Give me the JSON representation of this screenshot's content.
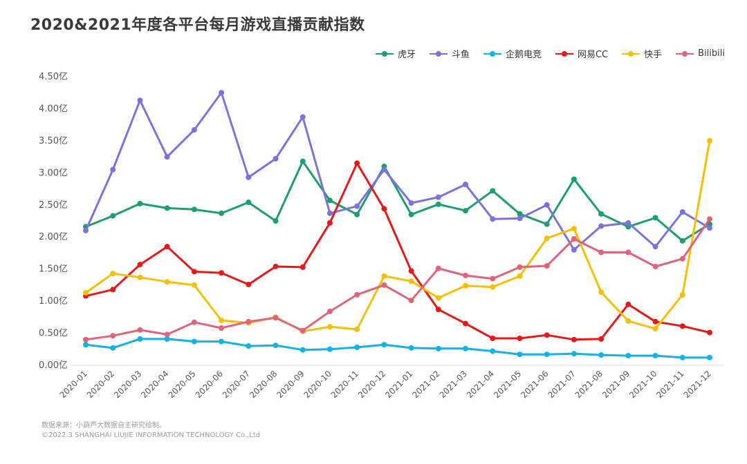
{
  "title": "2020&2021年度各平台每月游戏直播贡献指数",
  "footer": {
    "source": "数据来源：小葫芦大数据自主研究绘制。",
    "copyright": "©2022.3 SHANGHAI LIUJIE INFORMATION  TECHNOLOGY Co.,Ltd"
  },
  "chart_data": {
    "type": "line",
    "title": "2020&2021年度各平台每月游戏直播贡献指数",
    "xlabel": "",
    "ylabel": "",
    "ylim": [
      0,
      4.5
    ],
    "yticks": [
      "0.00亿",
      "0.50亿",
      "1.00亿",
      "1.50亿",
      "2.00亿",
      "2.50亿",
      "3.00亿",
      "3.50亿",
      "4.00亿",
      "4.50亿"
    ],
    "grid": false,
    "legend_position": "top-right",
    "categories": [
      "2020-01",
      "2020-02",
      "2020-03",
      "2020-04",
      "2020-05",
      "2020-06",
      "2020-07",
      "2020-08",
      "2020-09",
      "2020-10",
      "2020-11",
      "2020-12",
      "2021-01",
      "2021-02",
      "2021-03",
      "2021-04",
      "2021-05",
      "2021-06",
      "2021-07",
      "2021-08",
      "2021-09",
      "2021-10",
      "2021-11",
      "2021-12"
    ],
    "series": [
      {
        "name": "虎牙",
        "color": "#1aa06b",
        "values": [
          2.16,
          2.33,
          2.52,
          2.45,
          2.43,
          2.37,
          2.54,
          2.25,
          3.18,
          2.57,
          2.35,
          3.1,
          2.35,
          2.51,
          2.41,
          2.72,
          2.36,
          2.2,
          2.9,
          2.36,
          2.16,
          2.3,
          1.94,
          2.2
        ]
      },
      {
        "name": "斗鱼",
        "color": "#7b72e0",
        "values": [
          2.1,
          3.05,
          4.13,
          3.25,
          3.67,
          4.25,
          2.93,
          3.22,
          3.87,
          2.37,
          2.48,
          3.05,
          2.53,
          2.62,
          2.82,
          2.28,
          2.29,
          2.5,
          1.8,
          2.17,
          2.22,
          1.85,
          2.39,
          2.14
        ]
      },
      {
        "name": "企鹅电竞",
        "color": "#11b2e6",
        "values": [
          0.32,
          0.27,
          0.41,
          0.41,
          0.37,
          0.37,
          0.3,
          0.31,
          0.24,
          0.25,
          0.28,
          0.32,
          0.27,
          0.26,
          0.26,
          0.22,
          0.17,
          0.17,
          0.18,
          0.16,
          0.15,
          0.15,
          0.12,
          0.12
        ]
      },
      {
        "name": "网易CC",
        "color": "#e81818",
        "values": [
          1.08,
          1.18,
          1.57,
          1.85,
          1.46,
          1.44,
          1.26,
          1.54,
          1.53,
          2.22,
          3.15,
          2.44,
          1.47,
          0.87,
          0.65,
          0.42,
          0.42,
          0.47,
          0.4,
          0.41,
          0.95,
          0.68,
          0.61,
          0.51
        ]
      },
      {
        "name": "快手",
        "color": "#f6c000",
        "values": [
          1.13,
          1.43,
          1.37,
          1.3,
          1.25,
          0.7,
          0.66,
          0.75,
          0.53,
          0.6,
          0.56,
          1.39,
          1.31,
          1.05,
          1.24,
          1.22,
          1.39,
          1.98,
          2.13,
          1.14,
          0.69,
          0.57,
          1.1,
          3.5
        ]
      },
      {
        "name": "Bilibili",
        "color": "#e0637b",
        "values": [
          0.4,
          0.46,
          0.55,
          0.48,
          0.67,
          0.58,
          0.68,
          0.74,
          0.54,
          0.84,
          1.1,
          1.25,
          1.01,
          1.51,
          1.4,
          1.35,
          1.53,
          1.55,
          1.97,
          1.76,
          1.76,
          1.54,
          1.66,
          2.28
        ]
      }
    ]
  }
}
